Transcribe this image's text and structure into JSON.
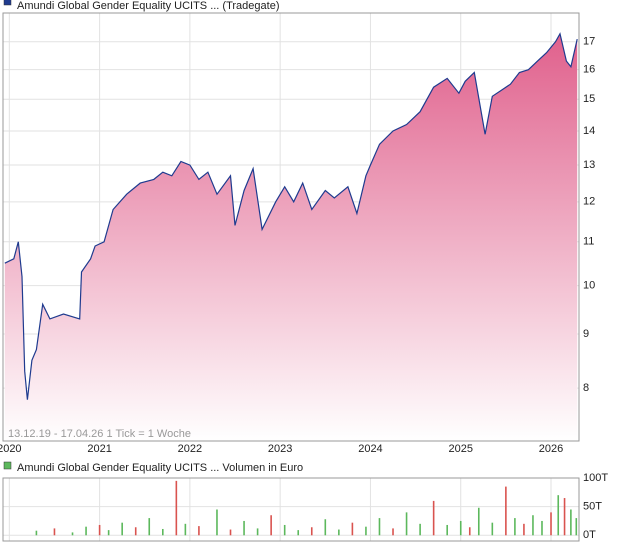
{
  "chart_data": [
    {
      "type": "line",
      "title": "Amundi Global Gender Equality UCITS ... (Tradegate)",
      "subtitle": "13.12.19 - 17.04.26   1 Tick = 1 Woche",
      "log_scale": true,
      "grid": true,
      "color": "#1f3b8f",
      "fill_top": "#e0608c",
      "fill_bottom": "#ffffff",
      "legend_color": "#1f3b8f",
      "x": [
        2019.95,
        2020.05,
        2020.1,
        2020.14,
        2020.17,
        2020.2,
        2020.25,
        2020.3,
        2020.37,
        2020.45,
        2020.6,
        2020.78,
        2020.8,
        2020.9,
        2020.95,
        2021.05,
        2021.15,
        2021.3,
        2021.45,
        2021.6,
        2021.7,
        2021.8,
        2021.9,
        2022.0,
        2022.1,
        2022.2,
        2022.3,
        2022.45,
        2022.5,
        2022.6,
        2022.7,
        2022.8,
        2022.95,
        2023.05,
        2023.15,
        2023.25,
        2023.35,
        2023.5,
        2023.6,
        2023.75,
        2023.85,
        2023.95,
        2024.0,
        2024.1,
        2024.25,
        2024.4,
        2024.55,
        2024.7,
        2024.85,
        2024.98,
        2025.05,
        2025.15,
        2025.27,
        2025.35,
        2025.45,
        2025.55,
        2025.65,
        2025.75,
        2025.85,
        2025.95,
        2026.05,
        2026.1,
        2026.17,
        2026.22,
        2026.29
      ],
      "values": [
        10.5,
        10.6,
        11.0,
        10.2,
        8.3,
        7.8,
        8.5,
        8.7,
        9.6,
        9.3,
        9.4,
        9.3,
        10.3,
        10.6,
        10.9,
        11.0,
        11.8,
        12.2,
        12.5,
        12.6,
        12.8,
        12.7,
        13.1,
        13.0,
        12.6,
        12.8,
        12.2,
        12.7,
        11.4,
        12.3,
        12.9,
        11.3,
        12.0,
        12.4,
        12.0,
        12.5,
        11.8,
        12.3,
        12.1,
        12.4,
        11.7,
        12.7,
        13.0,
        13.6,
        14.0,
        14.2,
        14.6,
        15.4,
        15.7,
        15.2,
        15.6,
        15.9,
        13.9,
        15.1,
        15.3,
        15.5,
        15.9,
        16.0,
        16.3,
        16.6,
        17.0,
        17.3,
        16.3,
        16.1,
        17.1
      ],
      "xlim": [
        2019.93,
        2026.31
      ],
      "xticks": [
        2020,
        2021,
        2022,
        2023,
        2024,
        2025,
        2026
      ],
      "ylim": [
        7.13,
        18.1
      ],
      "yticks": [
        8,
        9,
        10,
        11,
        12,
        13,
        14,
        15,
        16,
        17
      ]
    },
    {
      "type": "bar",
      "title": "Amundi Global Gender Equality UCITS ... Volumen in Euro",
      "grid": true,
      "legend_color": "#5cb85c",
      "x": [
        2020.3,
        2020.5,
        2020.7,
        2020.85,
        2021.0,
        2021.1,
        2021.25,
        2021.4,
        2021.55,
        2021.7,
        2021.85,
        2021.95,
        2022.1,
        2022.3,
        2022.45,
        2022.6,
        2022.75,
        2022.9,
        2023.05,
        2023.2,
        2023.35,
        2023.5,
        2023.65,
        2023.8,
        2023.95,
        2024.1,
        2024.25,
        2024.4,
        2024.55,
        2024.7,
        2024.85,
        2025.0,
        2025.1,
        2025.2,
        2025.35,
        2025.5,
        2025.6,
        2025.7,
        2025.8,
        2025.9,
        2026.0,
        2026.08,
        2026.15,
        2026.22,
        2026.28
      ],
      "values": [
        8000,
        12000,
        5000,
        15000,
        18000,
        9000,
        22000,
        14000,
        30000,
        11000,
        95000,
        20000,
        16000,
        45000,
        10000,
        25000,
        12000,
        35000,
        18000,
        9000,
        14000,
        28000,
        10000,
        22000,
        15000,
        30000,
        12000,
        40000,
        20000,
        60000,
        18000,
        25000,
        14000,
        48000,
        22000,
        85000,
        30000,
        20000,
        35000,
        25000,
        40000,
        70000,
        65000,
        45000,
        30000
      ],
      "colors": [
        "#5cb85c",
        "#d9534f",
        "#5cb85c",
        "#5cb85c",
        "#d9534f",
        "#5cb85c",
        "#5cb85c",
        "#d9534f",
        "#5cb85c",
        "#5cb85c",
        "#d9534f",
        "#5cb85c",
        "#d9534f",
        "#5cb85c",
        "#d9534f",
        "#5cb85c",
        "#5cb85c",
        "#d9534f",
        "#5cb85c",
        "#5cb85c",
        "#d9534f",
        "#5cb85c",
        "#5cb85c",
        "#d9534f",
        "#5cb85c",
        "#5cb85c",
        "#d9534f",
        "#5cb85c",
        "#5cb85c",
        "#d9534f",
        "#5cb85c",
        "#5cb85c",
        "#d9534f",
        "#5cb85c",
        "#5cb85c",
        "#d9534f",
        "#5cb85c",
        "#d9534f",
        "#5cb85c",
        "#5cb85c",
        "#d9534f",
        "#5cb85c",
        "#d9534f",
        "#5cb85c",
        "#5cb85c"
      ],
      "xlim": [
        2019.93,
        2026.31
      ],
      "xticks": [
        2020,
        2021,
        2022,
        2023,
        2024,
        2025,
        2026
      ],
      "ylim": [
        -10000,
        100000
      ],
      "yticks": [
        {
          "value": 100000,
          "label": "100T"
        },
        {
          "value": 50000,
          "label": "50T"
        },
        {
          "value": 0,
          "label": "0T"
        }
      ]
    }
  ]
}
